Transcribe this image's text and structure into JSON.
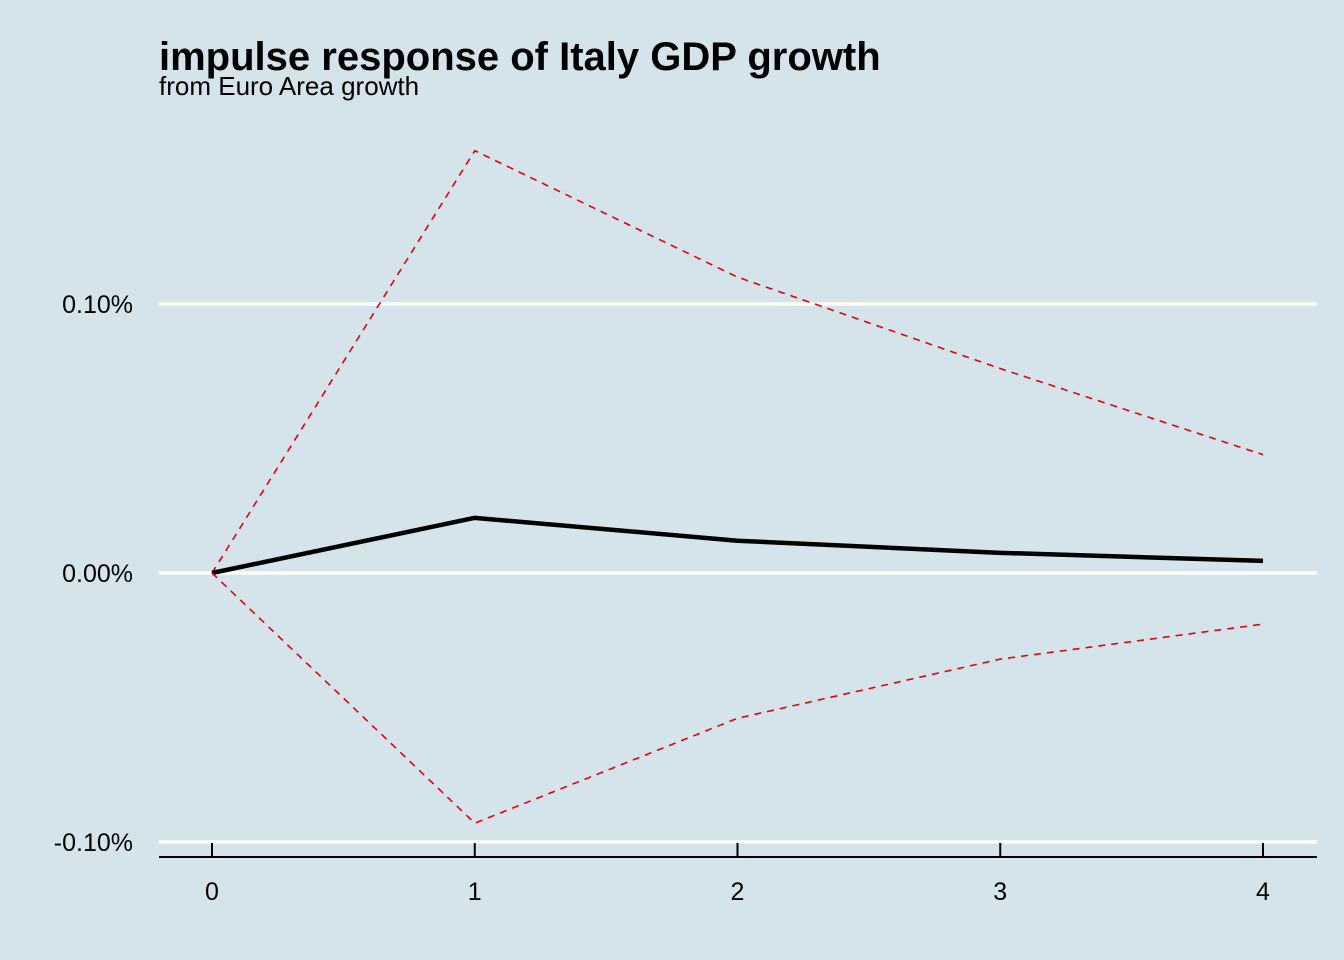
{
  "chart_data": {
    "type": "line",
    "title": "impulse response of Italy GDP growth",
    "subtitle": "from Euro Area growth",
    "xlabel": "",
    "ylabel": "",
    "x": [
      0,
      1,
      2,
      3,
      4
    ],
    "xticks": [
      "0",
      "1",
      "2",
      "3",
      "4"
    ],
    "yticks": [
      {
        "value": 0.1,
        "label": "0.10%"
      },
      {
        "value": 0.0,
        "label": "0.00%"
      },
      {
        "value": -0.1,
        "label": "-0.10%"
      }
    ],
    "ylim": [
      -0.105,
      0.16
    ],
    "xlim": [
      -0.2,
      4.2
    ],
    "grid": "horizontal",
    "series": [
      {
        "name": "upper",
        "style": "dashed",
        "color": "#e8000b",
        "values": [
          0.0,
          0.157,
          0.11,
          0.076,
          0.044
        ]
      },
      {
        "name": "irf",
        "style": "solid",
        "color": "#000000",
        "values": [
          0.0,
          0.0205,
          0.012,
          0.0075,
          0.0045
        ]
      },
      {
        "name": "lower",
        "style": "dashed",
        "color": "#e8000b",
        "values": [
          0.0,
          -0.093,
          -0.054,
          -0.032,
          -0.019
        ]
      }
    ]
  }
}
